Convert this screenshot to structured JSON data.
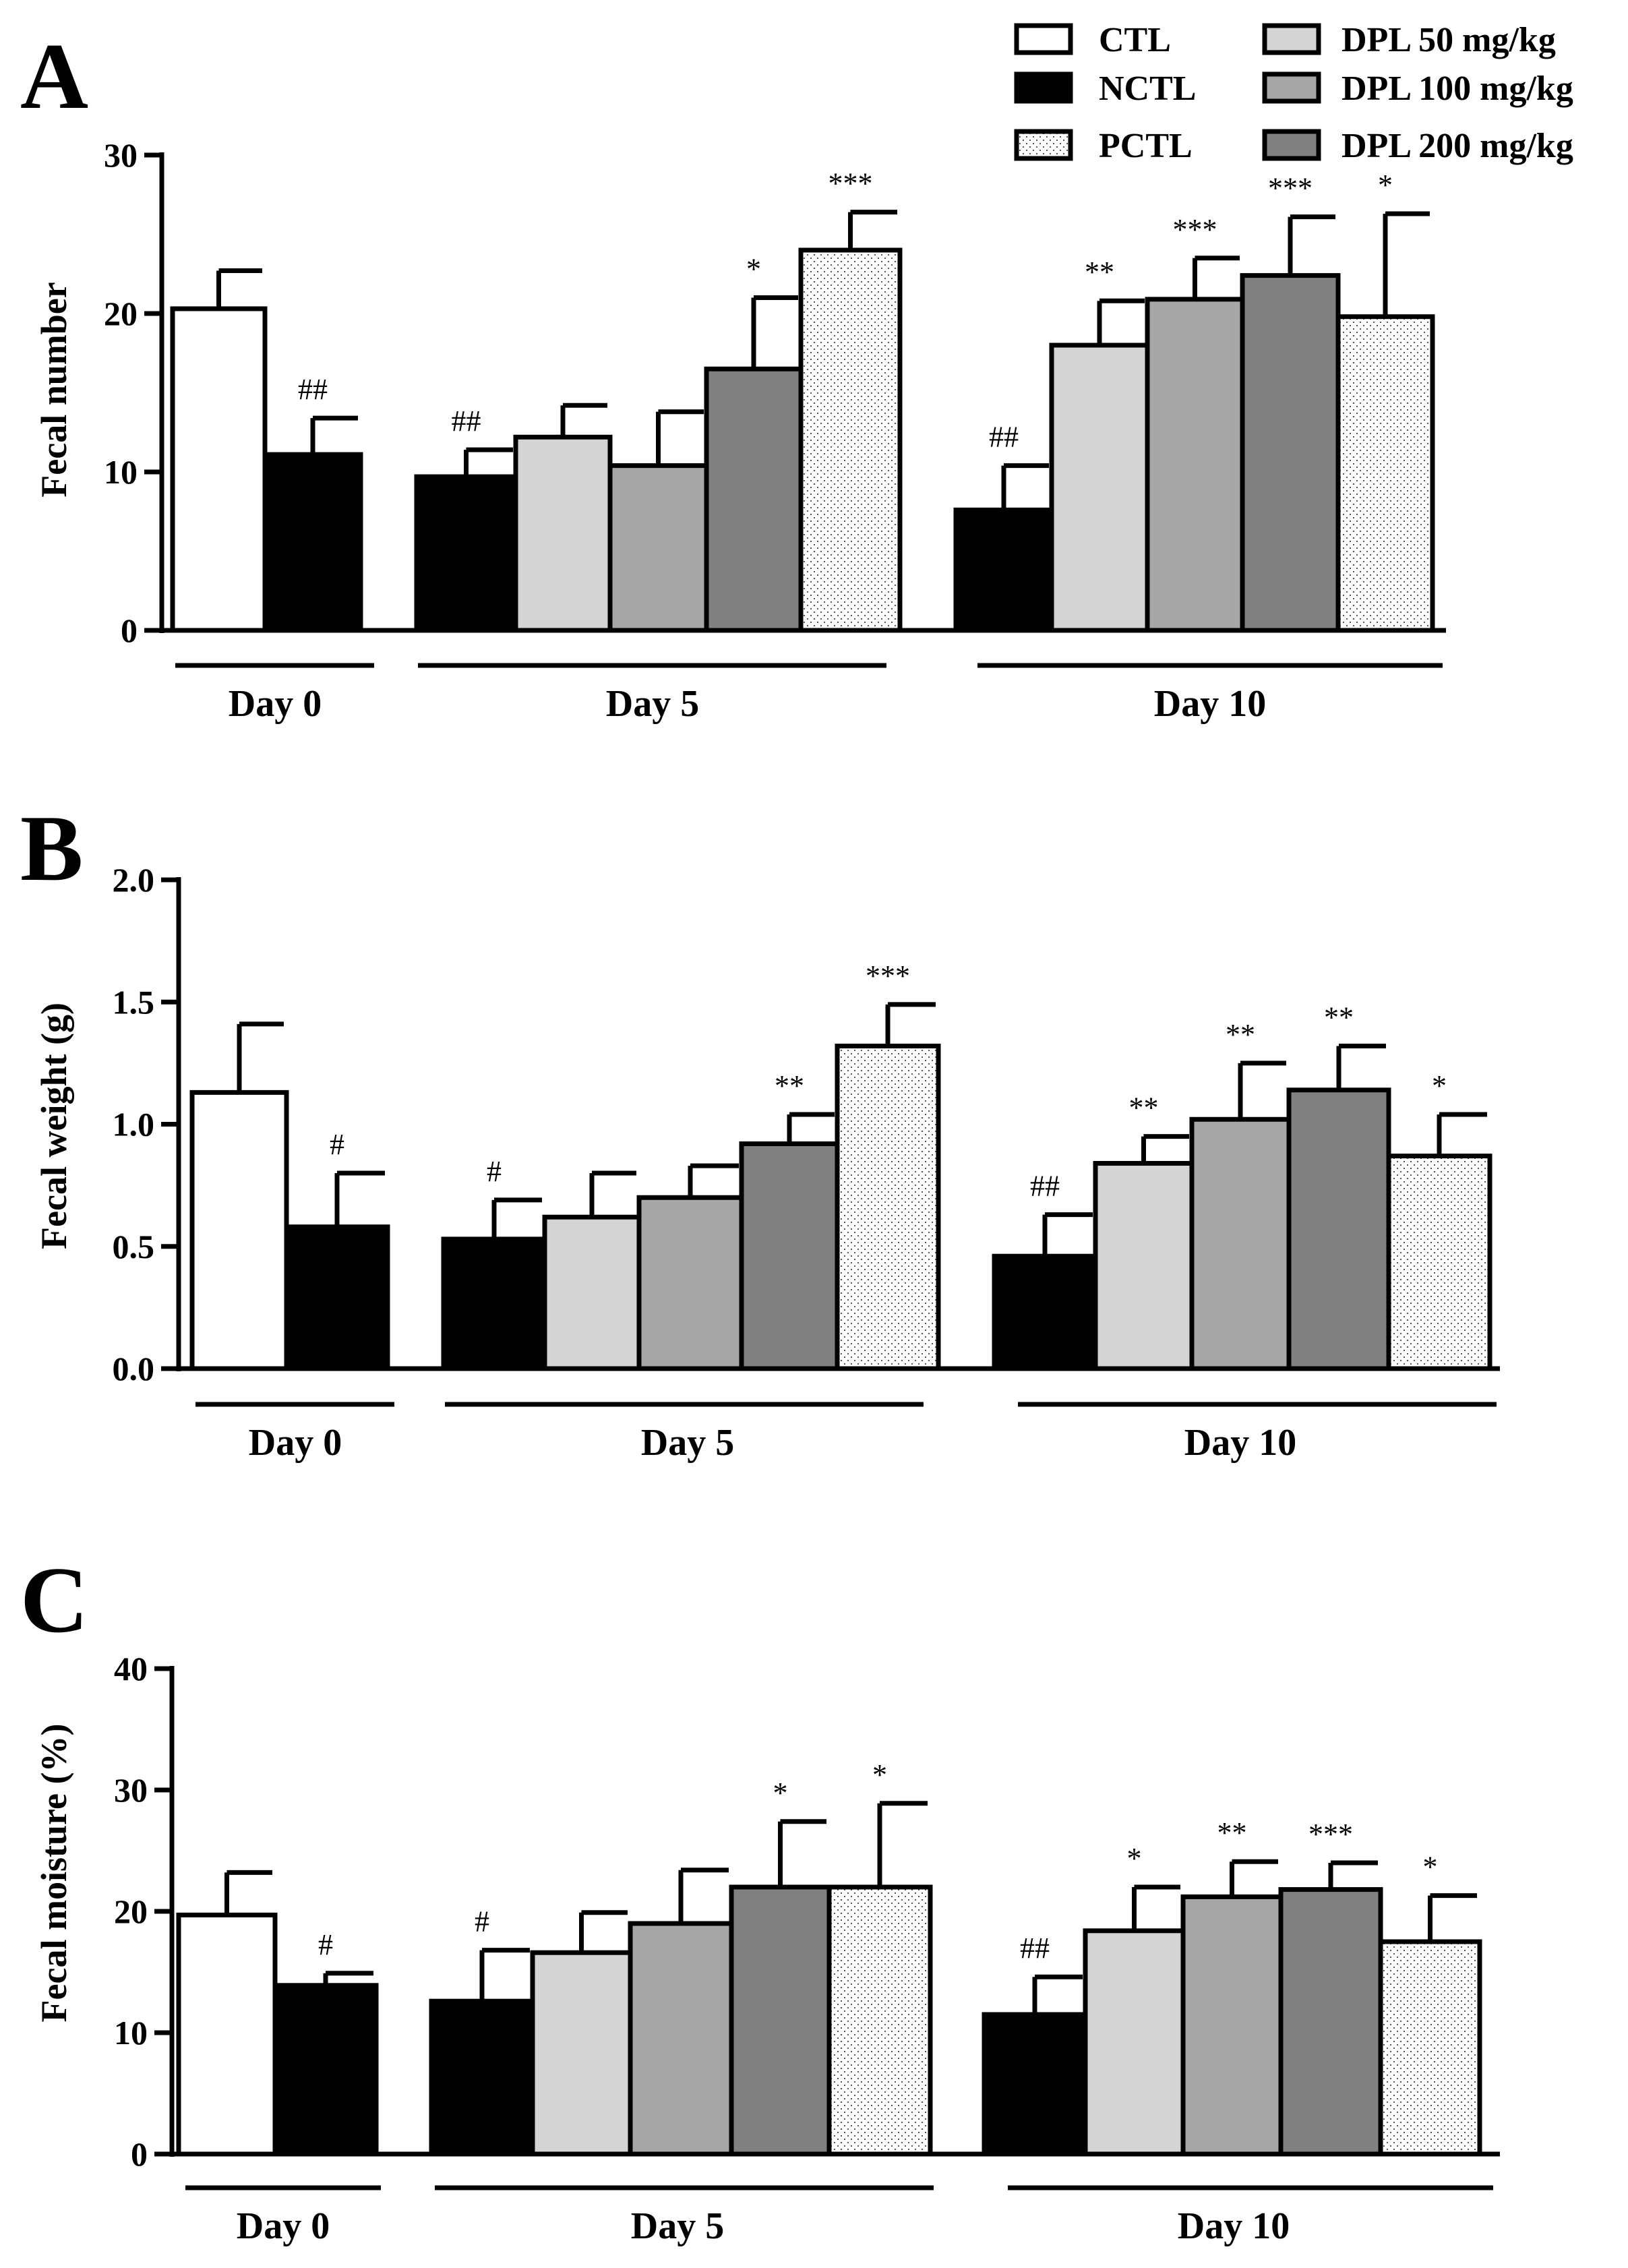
{
  "legend": {
    "items": [
      {
        "label": "CTL",
        "fill": "#ffffff"
      },
      {
        "label": "NCTL",
        "fill": "#000000"
      },
      {
        "label": "PCTL",
        "fill": "#ffffff"
      },
      {
        "label": "DPL 50 mg/kg",
        "fill": "#d4d4d4"
      },
      {
        "label": "DPL 100 mg/kg",
        "fill": "#a6a6a6"
      },
      {
        "label": "DPL 200 mg/kg",
        "fill": "#808080"
      }
    ]
  },
  "colors": {
    "CTL": "#ffffff",
    "NCTL": "#000000",
    "PCTL": "dotted",
    "DPL 50 mg/kg": "#d4d4d4",
    "DPL 100 mg/kg": "#a6a6a6",
    "DPL 200 mg/kg": "#808080"
  },
  "chart_data": [
    {
      "type": "bar",
      "panel": "A",
      "ylabel": "Fecal number",
      "ylim": [
        0,
        30
      ],
      "yticks": [
        0,
        10,
        20,
        30
      ],
      "groups": [
        "Day 0",
        "Day 5",
        "Day 10"
      ],
      "bars": [
        {
          "group": "Day 0",
          "series": "CTL",
          "value": 20.3,
          "error": 2.4,
          "sig": ""
        },
        {
          "group": "Day 0",
          "series": "NCTL",
          "value": 11.1,
          "error": 2.3,
          "sig": "##"
        },
        {
          "group": "Day 5",
          "series": "NCTL",
          "value": 9.7,
          "error": 1.7,
          "sig": "##"
        },
        {
          "group": "Day 5",
          "series": "DPL 50 mg/kg",
          "value": 12.2,
          "error": 2.0,
          "sig": ""
        },
        {
          "group": "Day 5",
          "series": "DPL 100 mg/kg",
          "value": 10.4,
          "error": 3.4,
          "sig": ""
        },
        {
          "group": "Day 5",
          "series": "DPL 200 mg/kg",
          "value": 16.5,
          "error": 4.5,
          "sig": "*"
        },
        {
          "group": "Day 5",
          "series": "PCTL",
          "value": 24.0,
          "error": 2.4,
          "sig": "***"
        },
        {
          "group": "Day 10",
          "series": "NCTL",
          "value": 7.6,
          "error": 2.8,
          "sig": "##"
        },
        {
          "group": "Day 10",
          "series": "DPL 50 mg/kg",
          "value": 18.0,
          "error": 2.8,
          "sig": "**"
        },
        {
          "group": "Day 10",
          "series": "DPL 100 mg/kg",
          "value": 20.9,
          "error": 2.6,
          "sig": "***"
        },
        {
          "group": "Day 10",
          "series": "DPL 200 mg/kg",
          "value": 22.4,
          "error": 3.7,
          "sig": "***"
        },
        {
          "group": "Day 10",
          "series": "PCTL",
          "value": 19.8,
          "error": 6.5,
          "sig": "*"
        }
      ]
    },
    {
      "type": "bar",
      "panel": "B",
      "ylabel": "Fecal weight (g)",
      "ylim": [
        0,
        2.0
      ],
      "yticks": [
        "0.0",
        "0.5",
        "1.0",
        "1.5",
        "2.0"
      ],
      "groups": [
        "Day 0",
        "Day 5",
        "Day 10"
      ],
      "bars": [
        {
          "group": "Day 0",
          "series": "CTL",
          "value": 1.13,
          "error": 0.28,
          "sig": ""
        },
        {
          "group": "Day 0",
          "series": "NCTL",
          "value": 0.58,
          "error": 0.22,
          "sig": "#"
        },
        {
          "group": "Day 5",
          "series": "NCTL",
          "value": 0.53,
          "error": 0.16,
          "sig": "#"
        },
        {
          "group": "Day 5",
          "series": "DPL 50 mg/kg",
          "value": 0.62,
          "error": 0.18,
          "sig": ""
        },
        {
          "group": "Day 5",
          "series": "DPL 100 mg/kg",
          "value": 0.7,
          "error": 0.13,
          "sig": ""
        },
        {
          "group": "Day 5",
          "series": "DPL 200 mg/kg",
          "value": 0.92,
          "error": 0.12,
          "sig": "**"
        },
        {
          "group": "Day 5",
          "series": "PCTL",
          "value": 1.32,
          "error": 0.17,
          "sig": "***"
        },
        {
          "group": "Day 10",
          "series": "NCTL",
          "value": 0.46,
          "error": 0.17,
          "sig": "##"
        },
        {
          "group": "Day 10",
          "series": "DPL 50 mg/kg",
          "value": 0.84,
          "error": 0.11,
          "sig": "**"
        },
        {
          "group": "Day 10",
          "series": "DPL 100 mg/kg",
          "value": 1.02,
          "error": 0.23,
          "sig": "**"
        },
        {
          "group": "Day 10",
          "series": "DPL 200 mg/kg",
          "value": 1.14,
          "error": 0.18,
          "sig": "**"
        },
        {
          "group": "Day 10",
          "series": "PCTL",
          "value": 0.87,
          "error": 0.17,
          "sig": "*"
        }
      ]
    },
    {
      "type": "bar",
      "panel": "C",
      "ylabel": "Fecal moisture (%)",
      "ylim": [
        0,
        40
      ],
      "yticks": [
        0,
        10,
        20,
        30,
        40
      ],
      "groups": [
        "Day 0",
        "Day 5",
        "Day 10"
      ],
      "bars": [
        {
          "group": "Day 0",
          "series": "CTL",
          "value": 19.7,
          "error": 3.5,
          "sig": ""
        },
        {
          "group": "Day 0",
          "series": "NCTL",
          "value": 13.9,
          "error": 1.0,
          "sig": "#"
        },
        {
          "group": "Day 5",
          "series": "NCTL",
          "value": 12.6,
          "error": 4.2,
          "sig": "#"
        },
        {
          "group": "Day 5",
          "series": "DPL 50 mg/kg",
          "value": 16.6,
          "error": 3.3,
          "sig": ""
        },
        {
          "group": "Day 5",
          "series": "DPL 100 mg/kg",
          "value": 19.0,
          "error": 4.4,
          "sig": ""
        },
        {
          "group": "Day 5",
          "series": "DPL 200 mg/kg",
          "value": 22.0,
          "error": 5.4,
          "sig": "*"
        },
        {
          "group": "Day 5",
          "series": "PCTL",
          "value": 22.0,
          "error": 6.9,
          "sig": "*"
        },
        {
          "group": "Day 10",
          "series": "NCTL",
          "value": 11.5,
          "error": 3.1,
          "sig": "##"
        },
        {
          "group": "Day 10",
          "series": "DPL 50 mg/kg",
          "value": 18.4,
          "error": 3.6,
          "sig": "*"
        },
        {
          "group": "Day 10",
          "series": "DPL 100 mg/kg",
          "value": 21.2,
          "error": 2.9,
          "sig": "**"
        },
        {
          "group": "Day 10",
          "series": "DPL 200 mg/kg",
          "value": 21.8,
          "error": 2.2,
          "sig": "***"
        },
        {
          "group": "Day 10",
          "series": "PCTL",
          "value": 17.5,
          "error": 3.8,
          "sig": "*"
        }
      ]
    }
  ]
}
